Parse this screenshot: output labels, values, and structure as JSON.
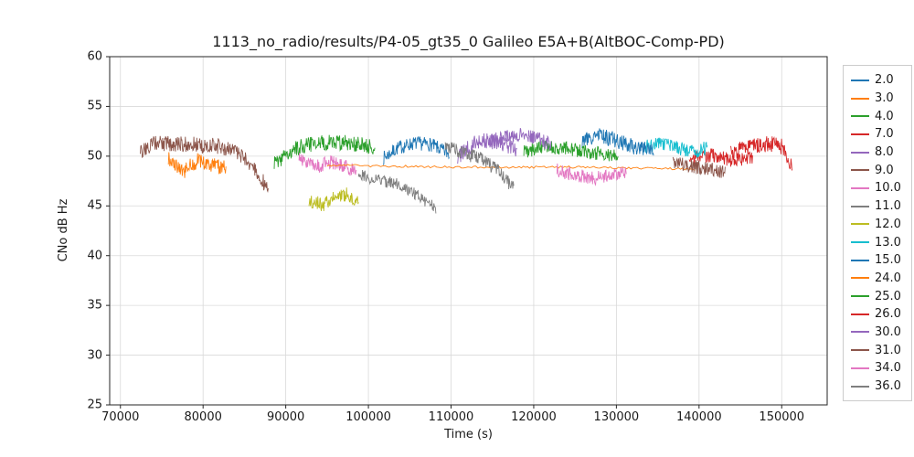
{
  "chart_data": {
    "type": "line",
    "title": "1113_no_radio/results/P4-05_gt35_0 Galileo E5A+B(AltBOC-Comp-PD)",
    "xlabel": "Time (s)",
    "ylabel": "CNo dB Hz",
    "xlim": [
      68700,
      155500
    ],
    "ylim": [
      25,
      60
    ],
    "xticks": [
      70000,
      80000,
      90000,
      100000,
      110000,
      120000,
      130000,
      140000,
      150000
    ],
    "yticks": [
      25,
      30,
      35,
      40,
      45,
      50,
      55,
      60
    ],
    "grid": true,
    "grid_color": "#d9d9d9",
    "legend_position": "right-outside",
    "series": [
      {
        "name": "2.0",
        "color": "#1f77b4",
        "noise": 0.7,
        "points": [
          [
            101800,
            49.8
          ],
          [
            103500,
            50.8
          ],
          [
            105500,
            51.3
          ],
          [
            107500,
            51.2
          ],
          [
            109800,
            50.2
          ]
        ]
      },
      {
        "name": "3.0",
        "color": "#ff7f0e",
        "noise": 0.8,
        "points": [
          [
            75800,
            49.8
          ],
          [
            77500,
            48.4
          ],
          [
            79500,
            49.6
          ],
          [
            81000,
            49.2
          ],
          [
            82800,
            48.8
          ]
        ]
      },
      {
        "name": "4.0",
        "color": "#2ca02c",
        "noise": 0.8,
        "points": [
          [
            88600,
            49.2
          ],
          [
            91000,
            50.8
          ],
          [
            94000,
            51.3
          ],
          [
            97000,
            51.4
          ],
          [
            100800,
            50.9
          ]
        ]
      },
      {
        "name": "7.0",
        "color": "#d62728",
        "noise": 0.7,
        "points": [
          [
            138800,
            49.8
          ],
          [
            141500,
            50.1
          ],
          [
            144000,
            49.6
          ],
          [
            146500,
            49.9
          ]
        ]
      },
      {
        "name": "8.0",
        "color": "#9467bd",
        "noise": 0.8,
        "points": [
          [
            110800,
            49.9
          ],
          [
            112500,
            51.2
          ],
          [
            114500,
            51.6
          ],
          [
            116500,
            51.2
          ],
          [
            118000,
            50.6
          ]
        ]
      },
      {
        "name": "9.0",
        "color": "#8c564b",
        "noise": 0.8,
        "points": [
          [
            72400,
            50.3
          ],
          [
            74000,
            51.3
          ],
          [
            78000,
            51.2
          ],
          [
            82000,
            51.0
          ],
          [
            84500,
            50.2
          ],
          [
            86500,
            48.5
          ],
          [
            87900,
            46.6
          ]
        ]
      },
      {
        "name": "10.0",
        "color": "#e377c2",
        "noise": 0.7,
        "points": [
          [
            91600,
            49.9
          ],
          [
            93500,
            48.9
          ],
          [
            95500,
            49.4
          ],
          [
            97000,
            49.0
          ],
          [
            98600,
            48.4
          ]
        ]
      },
      {
        "name": "11.0",
        "color": "#7f7f7f",
        "noise": 0.6,
        "points": [
          [
            98800,
            48.2
          ],
          [
            101000,
            47.6
          ],
          [
            103500,
            47.2
          ],
          [
            105500,
            46.3
          ],
          [
            107000,
            45.4
          ],
          [
            108200,
            44.8
          ]
        ]
      },
      {
        "name": "12.0",
        "color": "#bcbd22",
        "noise": 0.7,
        "points": [
          [
            92800,
            45.6
          ],
          [
            94500,
            45.1
          ],
          [
            96000,
            45.9
          ],
          [
            97500,
            46.2
          ],
          [
            98800,
            45.4
          ]
        ]
      },
      {
        "name": "13.0",
        "color": "#17becf",
        "noise": 0.7,
        "points": [
          [
            133200,
            50.9
          ],
          [
            135500,
            51.3
          ],
          [
            137500,
            50.8
          ],
          [
            139500,
            50.4
          ],
          [
            141000,
            50.9
          ]
        ]
      },
      {
        "name": "15.0",
        "color": "#1f77b4",
        "noise": 0.8,
        "points": [
          [
            125800,
            51.4
          ],
          [
            128000,
            52.1
          ],
          [
            130000,
            51.6
          ],
          [
            132000,
            51.0
          ],
          [
            134500,
            50.6
          ]
        ]
      },
      {
        "name": "24.0",
        "color": "#ff7f0e",
        "noise": 0.12,
        "step": 250,
        "points": [
          [
            95000,
            49.1
          ],
          [
            110000,
            48.9
          ],
          [
            125000,
            48.9
          ],
          [
            139500,
            48.7
          ]
        ]
      },
      {
        "name": "25.0",
        "color": "#2ca02c",
        "noise": 0.7,
        "points": [
          [
            118800,
            50.4
          ],
          [
            121500,
            51.0
          ],
          [
            124500,
            50.7
          ],
          [
            127500,
            50.3
          ],
          [
            130200,
            49.9
          ]
        ]
      },
      {
        "name": "26.0",
        "color": "#d62728",
        "noise": 0.8,
        "points": [
          [
            143800,
            50.4
          ],
          [
            146000,
            50.9
          ],
          [
            148500,
            51.3
          ],
          [
            150200,
            50.9
          ],
          [
            151300,
            48.9
          ]
        ]
      },
      {
        "name": "30.0",
        "color": "#9467bd",
        "noise": 0.7,
        "points": [
          [
            114600,
            51.5
          ],
          [
            116500,
            52.0
          ],
          [
            118500,
            52.2
          ],
          [
            120500,
            51.8
          ],
          [
            122200,
            51.1
          ]
        ]
      },
      {
        "name": "31.0",
        "color": "#8c564b",
        "noise": 0.7,
        "points": [
          [
            136800,
            49.4
          ],
          [
            139000,
            49.0
          ],
          [
            141000,
            48.7
          ],
          [
            143200,
            48.4
          ]
        ]
      },
      {
        "name": "34.0",
        "color": "#e377c2",
        "noise": 0.7,
        "points": [
          [
            122800,
            48.6
          ],
          [
            125000,
            48.1
          ],
          [
            127500,
            47.8
          ],
          [
            129500,
            48.0
          ],
          [
            131200,
            48.5
          ]
        ]
      },
      {
        "name": "36.0",
        "color": "#7f7f7f",
        "noise": 0.7,
        "points": [
          [
            109300,
            51.0
          ],
          [
            111500,
            50.3
          ],
          [
            113500,
            49.8
          ],
          [
            115500,
            48.7
          ],
          [
            117600,
            46.8
          ]
        ]
      }
    ]
  }
}
